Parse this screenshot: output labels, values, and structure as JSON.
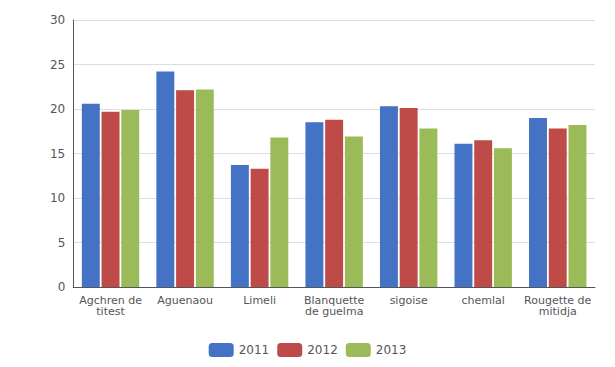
{
  "chart_data": {
    "type": "bar",
    "categories": [
      "Agchren de\ntitest",
      "Aguenaou",
      "Limeli",
      "Blanquette\nde guelma",
      "sigoise",
      "chemlal",
      "Rougette de\nmitidja"
    ],
    "series": [
      {
        "name": "2011",
        "color": "#4472C4",
        "values": [
          20.6,
          24.2,
          13.7,
          18.5,
          20.3,
          16.1,
          19.0
        ]
      },
      {
        "name": "2012",
        "color": "#BE4B48",
        "values": [
          19.7,
          22.1,
          13.3,
          18.8,
          20.1,
          16.5,
          17.8
        ]
      },
      {
        "name": "2013",
        "color": "#9BBB59",
        "values": [
          19.9,
          22.2,
          16.8,
          16.9,
          17.8,
          15.6,
          18.2
        ]
      }
    ],
    "ylim": [
      0,
      30
    ],
    "yticks": [
      0,
      5,
      10,
      15,
      20,
      25,
      30
    ],
    "grid": true,
    "legend": "bottom"
  }
}
